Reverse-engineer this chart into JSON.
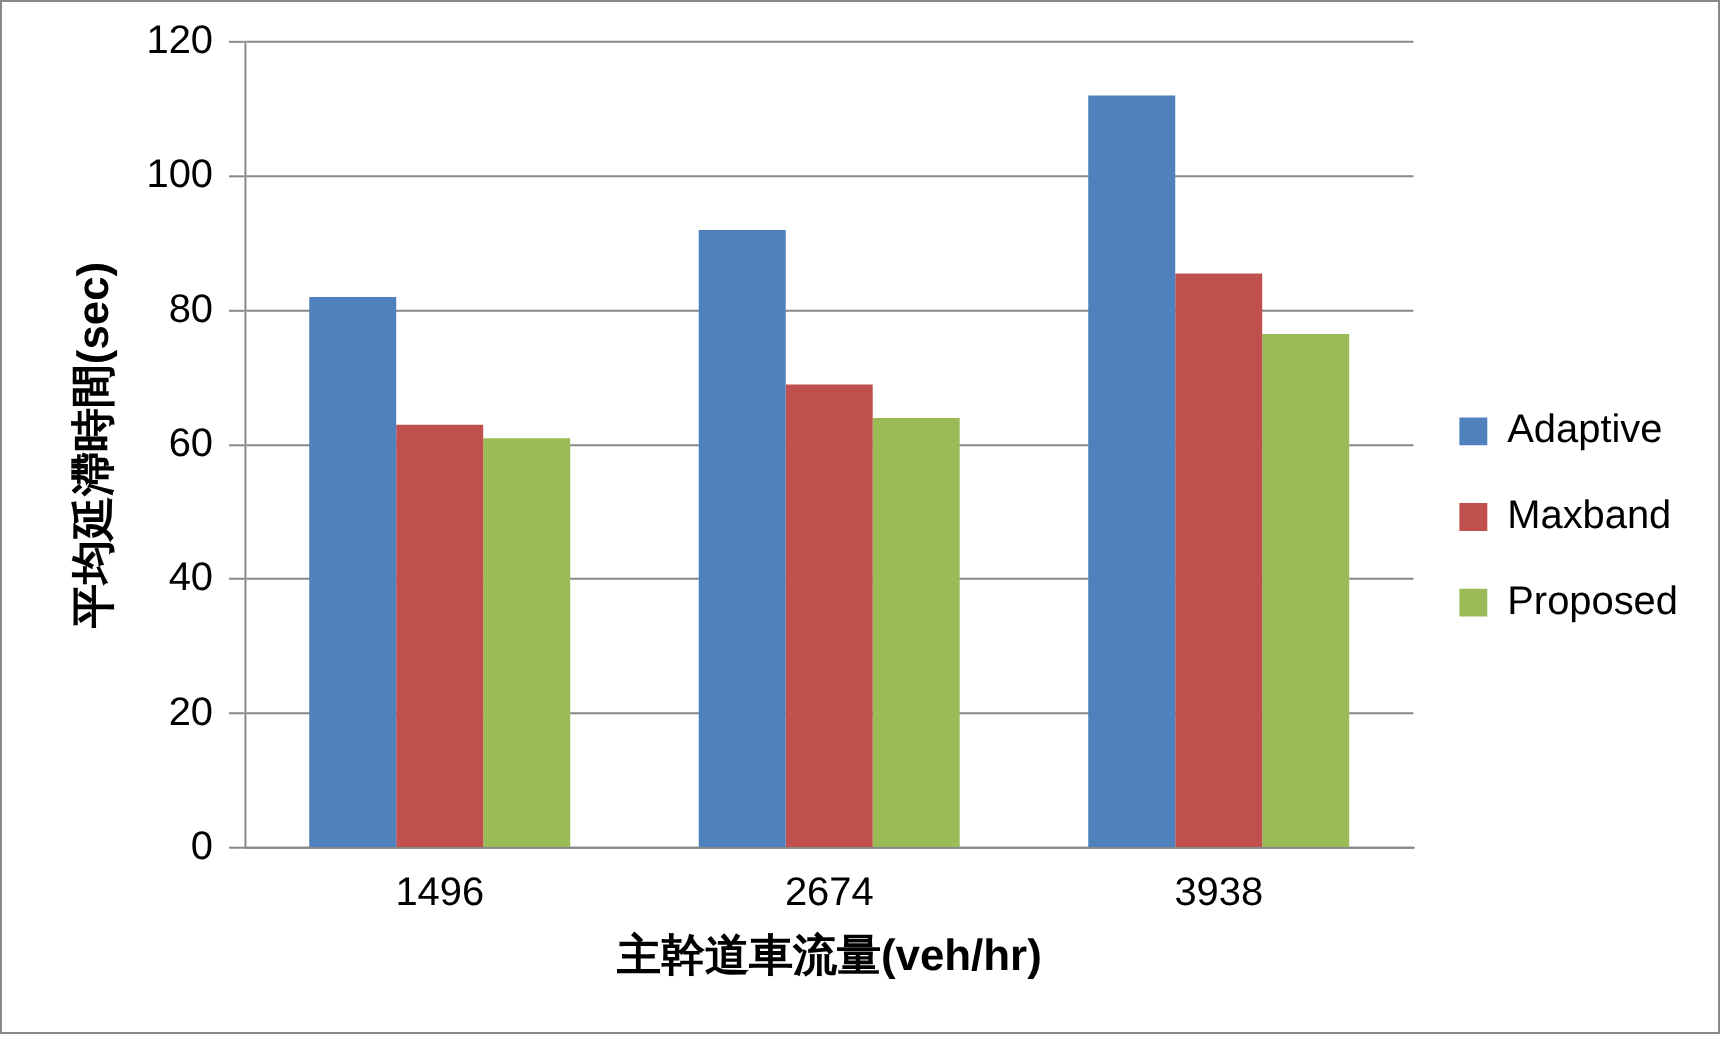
{
  "chart_data": {
    "type": "bar",
    "xlabel": "主幹道車流量(veh/hr)",
    "ylabel": "平均延滯時間(sec)",
    "categories": [
      "1496",
      "2674",
      "3938"
    ],
    "series": [
      {
        "name": "Adaptive",
        "color": "#4f81bd",
        "values": [
          82,
          92,
          112
        ]
      },
      {
        "name": "Maxband",
        "color": "#c0504d",
        "values": [
          63,
          69,
          85.5
        ]
      },
      {
        "name": "Proposed",
        "color": "#9bbb59",
        "values": [
          61,
          64,
          76.5
        ]
      }
    ],
    "ylim": [
      0,
      120
    ],
    "yticks": [
      0,
      20,
      40,
      60,
      80,
      100,
      120
    ],
    "grid": "y",
    "legend": "right"
  }
}
